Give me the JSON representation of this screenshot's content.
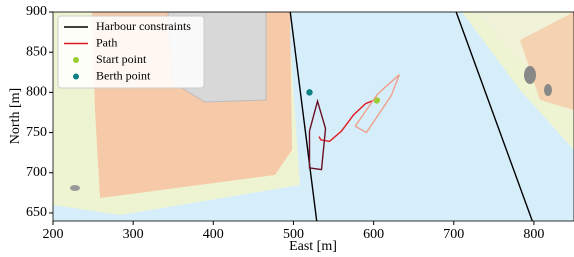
{
  "chart_data": {
    "type": "line",
    "xlabel": "East [m]",
    "ylabel": "North [m]",
    "xlim": [
      200,
      850
    ],
    "ylim": [
      640,
      900
    ],
    "xticks": [
      200,
      300,
      400,
      500,
      600,
      700,
      800
    ],
    "yticks": [
      650,
      700,
      750,
      800,
      850,
      900
    ],
    "legend": "upper left",
    "series": [
      {
        "name": "Harbour constraints",
        "kind": "line",
        "color": "#000000",
        "x": [
          496,
          529,
          null,
          703,
          798
        ],
        "y": [
          900,
          640,
          null,
          900,
          640
        ]
      },
      {
        "name": "Path",
        "kind": "line",
        "color": "#e0191e",
        "x": [
          532,
          534,
          545,
          560,
          575,
          590,
          605
        ],
        "y": [
          745,
          741,
          739,
          752,
          772,
          786,
          792
        ]
      },
      {
        "name": "Start point",
        "kind": "scatter",
        "color": "#9acd32",
        "x": [
          604
        ],
        "y": [
          790
        ]
      },
      {
        "name": "Berth point",
        "kind": "scatter",
        "color": "#0a8080",
        "x": [
          520
        ],
        "y": [
          800
        ]
      },
      {
        "kind": "line",
        "color": "#6b0f24",
        "x": [
          520,
          530,
          540,
          535,
          520,
          520
        ],
        "y": [
          752,
          789,
          755,
          704,
          706,
          752
        ]
      },
      {
        "kind": "line",
        "color": "#f0a08a",
        "x": [
          577,
          605,
          632,
          622,
          591,
          577
        ],
        "y": [
          758,
          798,
          822,
          796,
          750,
          758
        ]
      }
    ]
  }
}
